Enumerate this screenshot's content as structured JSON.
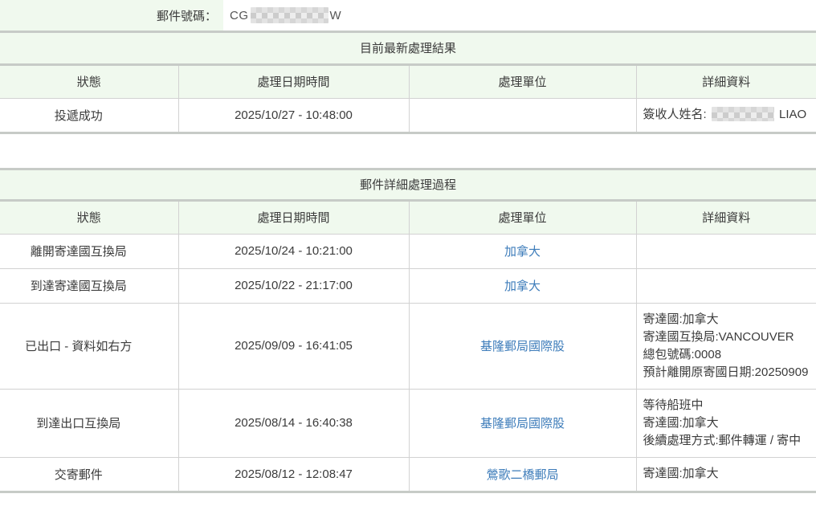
{
  "topbar": {
    "label": "郵件號碼：",
    "tracking_prefix": "CG",
    "tracking_suffix": "W"
  },
  "latest": {
    "title": "目前最新處理結果",
    "headers": [
      "狀態",
      "處理日期時間",
      "處理單位",
      "詳細資料"
    ],
    "row": {
      "status": "投遞成功",
      "datetime": "2025/10/27 - 10:48:00",
      "unit": "",
      "detail_prefix": "簽收人姓名:",
      "detail_suffix": "LIAO"
    }
  },
  "history": {
    "title": "郵件詳細處理過程",
    "headers": [
      "狀態",
      "處理日期時間",
      "處理單位",
      "詳細資料"
    ],
    "rows": [
      {
        "status": "離開寄達國互換局",
        "datetime": "2025/10/24 - 10:21:00",
        "unit": "加拿大",
        "details": []
      },
      {
        "status": "到達寄達國互換局",
        "datetime": "2025/10/22 - 21:17:00",
        "unit": "加拿大",
        "details": []
      },
      {
        "status": "已出口 - 資料如右方",
        "datetime": "2025/09/09 - 16:41:05",
        "unit": "基隆郵局國際股",
        "details": [
          "寄達國:加拿大",
          "寄達國互換局:VANCOUVER",
          "總包號碼:0008",
          "預計離開原寄國日期:20250909"
        ]
      },
      {
        "status": "到達出口互換局",
        "datetime": "2025/08/14 - 16:40:38",
        "unit": "基隆郵局國際股",
        "details": [
          "等待船班中",
          "寄達國:加拿大",
          "後續處理方式:郵件轉運 / 寄中"
        ]
      },
      {
        "status": "交寄郵件",
        "datetime": "2025/08/12 - 12:08:47",
        "unit": "鶯歌二橋郵局",
        "details": [
          "寄達國:加拿大"
        ]
      }
    ]
  },
  "colors": {
    "green": "#f0f9ee",
    "border_thick": "#c7cbc7",
    "border_thin": "#d2d2d2",
    "text": "#3b3b3b",
    "link": "#3d7cba"
  }
}
